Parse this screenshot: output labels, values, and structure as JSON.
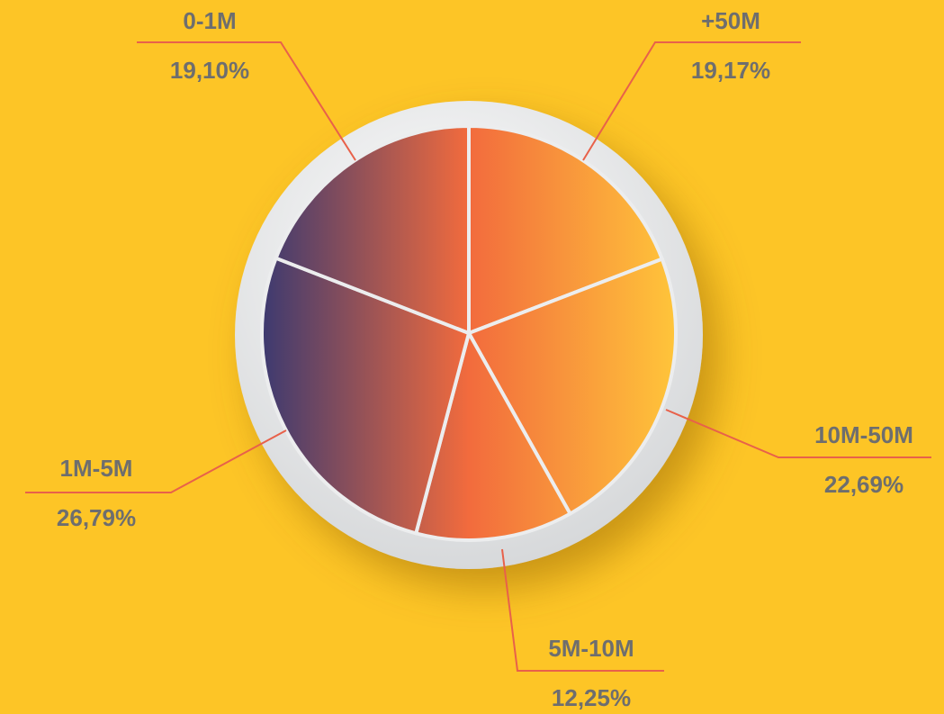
{
  "chart_data": {
    "type": "pie",
    "categories": [
      "+50M",
      "10M-50M",
      "5M-10M",
      "1M-5M",
      "0-1M"
    ],
    "values": [
      19.17,
      22.69,
      12.25,
      26.79,
      19.1
    ],
    "value_labels": [
      "19,17%",
      "22,69%",
      "12,25%",
      "26,79%",
      "19,10%"
    ],
    "gradient": [
      "#3d3a70",
      "#f26b3d",
      "#ffc53a"
    ]
  }
}
